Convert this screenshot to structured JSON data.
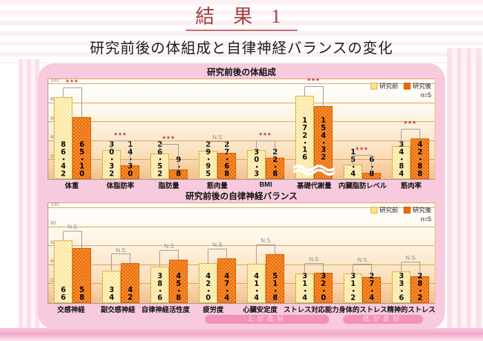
{
  "page": {
    "title": "結 果 1",
    "subtitle": "研究前後の体組成と自律神経バランスの変化"
  },
  "legend": {
    "before": "研究前",
    "after": "研究後",
    "n_label": "n=5"
  },
  "footer_ribbons": [
    {
      "label": "上が良好"
    },
    {
      "label": "低が良好"
    }
  ],
  "colors": {
    "accent_red": "#A33E3C",
    "before_bar": "#FBE289",
    "after_bar": "#EC6B07",
    "panel_pink": "#F7CADD",
    "grid_orange": "#DFA24E",
    "sig_red": "#B43C4C",
    "ns_gray": "#8A8A8A",
    "ribbon_pink": "#F291BC"
  },
  "chart_data": [
    {
      "type": "bar",
      "title": "研究前後の体組成",
      "series_names": [
        "研究前",
        "研究後"
      ],
      "n": 5,
      "ylim": [
        0,
        105
      ],
      "yticks": [
        20,
        40,
        60,
        80,
        100
      ],
      "grid": true,
      "legend_position": "top-right",
      "points": [
        {
          "category": "体重",
          "before": 86.42,
          "before_label": "86・42",
          "after": 65.1,
          "after_label": "65・10",
          "sig": "***"
        },
        {
          "category": "体脂肪率",
          "before": 30.32,
          "before_label": "30・32",
          "after": 14.3,
          "after_label": "14・30",
          "sig": "***"
        },
        {
          "category": "脂肪量",
          "before": 26.52,
          "before_label": "26・52",
          "after": 9.8,
          "after_label": "9・8",
          "sig": "***"
        },
        {
          "category": "筋肉量",
          "before": 29.95,
          "before_label": "29・95",
          "after": 27.68,
          "after_label": "27・68",
          "sig": "N.S"
        },
        {
          "category": "BMI",
          "before": 30.3,
          "before_label": "30・3",
          "after": 22.8,
          "after_label": "22・8",
          "sig": "***"
        },
        {
          "category": "基礎代謝量",
          "before": 172.16,
          "before_label": "172・16",
          "after": 154.32,
          "after_label": "154・32",
          "sig": "***",
          "axis_break": true,
          "before_display": 88,
          "after_display": 77
        },
        {
          "category": "内臓脂肪レベル",
          "before": 15.4,
          "before_label": "15・4",
          "after": 6.8,
          "after_label": "6・8",
          "sig": "***"
        },
        {
          "category": "筋肉率",
          "before": 34.84,
          "before_label": "34・84",
          "after": 42.88,
          "after_label": "42・88",
          "sig": "***"
        }
      ]
    },
    {
      "type": "bar",
      "title": "研究前後の自律神経バランス",
      "series_names": [
        "研究前",
        "研究後"
      ],
      "n": 5,
      "ylim": [
        0,
        105
      ],
      "yticks": [
        20,
        40,
        60,
        80,
        100
      ],
      "grid": true,
      "legend_position": "top-right",
      "points": [
        {
          "category": "交感神経",
          "before": 66,
          "before_label": "66",
          "after": 58,
          "after_label": "58",
          "sig": "N.S"
        },
        {
          "category": "副交感神経",
          "before": 34,
          "before_label": "34",
          "after": 42,
          "after_label": "42",
          "sig": "N.S"
        },
        {
          "category": "自律神経活性度",
          "before": 38.6,
          "before_label": "38・6",
          "after": 45.8,
          "after_label": "45・8",
          "sig": "N.S"
        },
        {
          "category": "疲労度",
          "before": 42.0,
          "before_label": "42・0",
          "after": 47.4,
          "after_label": "47・4",
          "sig": "N.S"
        },
        {
          "category": "心臓安定度",
          "before": 41.4,
          "before_label": "41・4",
          "after": 51.8,
          "after_label": "51・8",
          "sig": "N.S"
        },
        {
          "category": "ストレス対応能力",
          "before": 31.4,
          "before_label": "31・4",
          "after": 32.0,
          "after_label": "32・0",
          "sig": "N.S"
        },
        {
          "category": "身体的ストレス",
          "before": 31.2,
          "before_label": "31・2",
          "after": 27.4,
          "after_label": "27・4",
          "sig": "N.S"
        },
        {
          "category": "精神的ストレス",
          "before": 33.6,
          "before_label": "33・6",
          "after": 28.2,
          "after_label": "28・2",
          "sig": "N.S"
        }
      ]
    }
  ]
}
